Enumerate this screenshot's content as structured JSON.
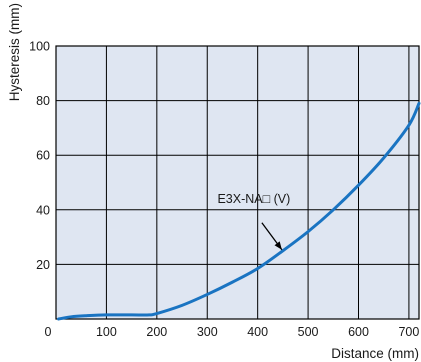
{
  "colors": {
    "plot_background": "#dfe6f2",
    "grid": "#000000",
    "curve": "#1a74c2"
  },
  "chart_data": {
    "type": "line",
    "title": "",
    "xlabel": "Distance (mm)",
    "ylabel": "Hysteresis (mm)",
    "xlim": [
      0,
      720
    ],
    "ylim": [
      0,
      100
    ],
    "grid": true,
    "x_tick_labels": [
      "100",
      "200",
      "300",
      "400",
      "500",
      "600",
      "700"
    ],
    "y_tick_labels": [
      "20",
      "40",
      "60",
      "80",
      "100"
    ],
    "origin_label": "0",
    "series": [
      {
        "name": "E3X-NA□ (V)",
        "x": [
          5,
          30,
          60,
          100,
          150,
          185,
          200,
          250,
          300,
          350,
          400,
          450,
          500,
          550,
          600,
          650,
          700,
          720
        ],
        "y": [
          0,
          0.8,
          1.2,
          1.5,
          1.5,
          1.5,
          2,
          5,
          9,
          13.5,
          18.5,
          25,
          32,
          40,
          49,
          59,
          71,
          79
        ]
      }
    ],
    "annotations": [
      {
        "text": "E3X-NA□ (V)",
        "points_to": {
          "x": 450,
          "y": 25
        }
      }
    ]
  }
}
